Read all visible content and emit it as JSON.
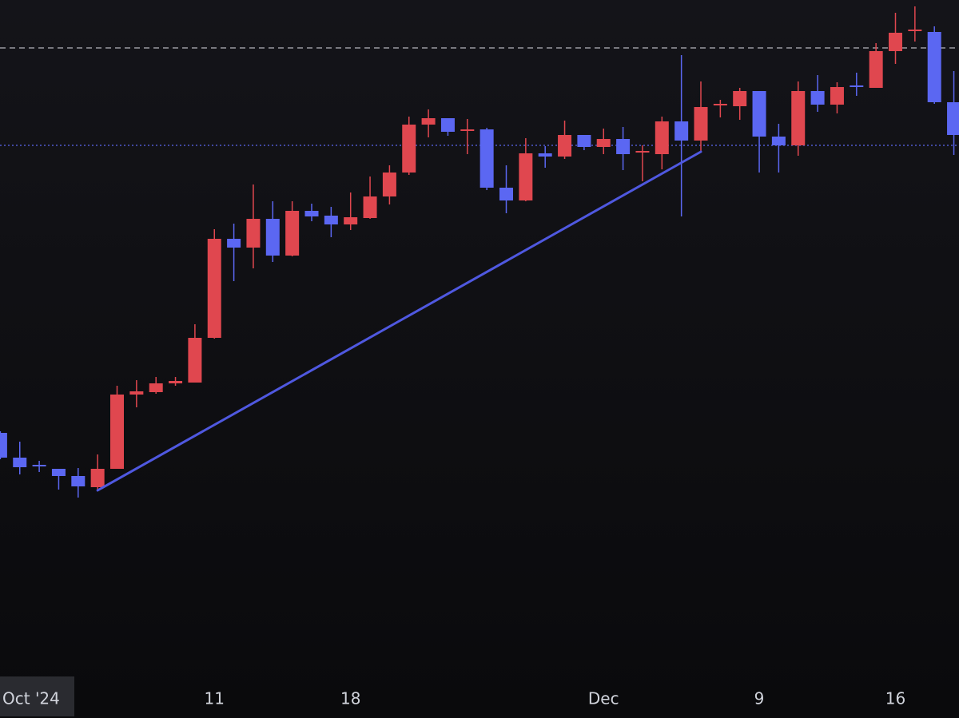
{
  "chart_data": {
    "type": "candlestick",
    "categories": [
      "Oct '24",
      null,
      null,
      null,
      null,
      null,
      null,
      null,
      null,
      null,
      null,
      "11",
      null,
      null,
      null,
      null,
      null,
      null,
      "18",
      null,
      null,
      null,
      null,
      null,
      null,
      null,
      null,
      null,
      null,
      null,
      null,
      "Dec",
      null,
      null,
      null,
      null,
      null,
      null,
      null,
      "9",
      null,
      null,
      null,
      null,
      null,
      null,
      "16",
      null,
      null,
      null
    ],
    "open": [
      358,
      327,
      318,
      313,
      304,
      290,
      313,
      406,
      409,
      420,
      421,
      477,
      601,
      590,
      626,
      580,
      636,
      630,
      619,
      627,
      654,
      684,
      744,
      752,
      736,
      738,
      665,
      649,
      708,
      704,
      731,
      716,
      726,
      709,
      707,
      748,
      724,
      768,
      767,
      786,
      729,
      718,
      786,
      769,
      793,
      790,
      836,
      861,
      860,
      772
    ],
    "high": [
      360,
      347,
      323,
      313,
      314,
      331,
      417,
      424,
      428,
      428,
      494,
      613,
      620,
      669,
      648,
      648,
      645,
      641,
      659,
      679,
      693,
      754,
      763,
      752,
      751,
      740,
      693,
      727,
      717,
      749,
      731,
      739,
      741,
      718,
      754,
      831,
      798,
      775,
      790,
      786,
      745,
      798,
      806,
      797,
      809,
      846,
      884,
      892,
      867,
      811
    ],
    "low": [
      325,
      306,
      309,
      287,
      277,
      286,
      313,
      390,
      407,
      417,
      421,
      476,
      548,
      564,
      572,
      579,
      623,
      603,
      612,
      626,
      644,
      681,
      728,
      730,
      707,
      662,
      633,
      648,
      690,
      701,
      712,
      707,
      687,
      673,
      688,
      629,
      710,
      753,
      750,
      684,
      684,
      705,
      760,
      758,
      780,
      790,
      820,
      848,
      770,
      706
    ],
    "close": [
      327,
      315,
      316,
      304,
      291,
      313,
      406,
      410,
      420,
      423,
      477,
      601,
      590,
      626,
      580,
      636,
      629,
      619,
      628,
      654,
      684,
      744,
      752,
      735,
      738,
      665,
      649,
      708,
      704,
      731,
      716,
      726,
      707,
      711,
      748,
      724,
      766,
      770,
      786,
      729,
      718,
      786,
      769,
      791,
      791,
      836,
      859,
      863,
      772,
      731
    ],
    "up_color": "#e0474f",
    "down_color": "#5b67f2",
    "ylim": [
      0,
      900
    ],
    "reference_lines": [
      {
        "value": 840,
        "style": "dashed",
        "color": "#9a9aa0"
      },
      {
        "value": 718,
        "style": "dotted",
        "color": "#5b67f2"
      }
    ],
    "trendline": {
      "x": [
        5,
        36
      ],
      "values": [
        286,
        710
      ],
      "color": "#4f58e0"
    }
  }
}
